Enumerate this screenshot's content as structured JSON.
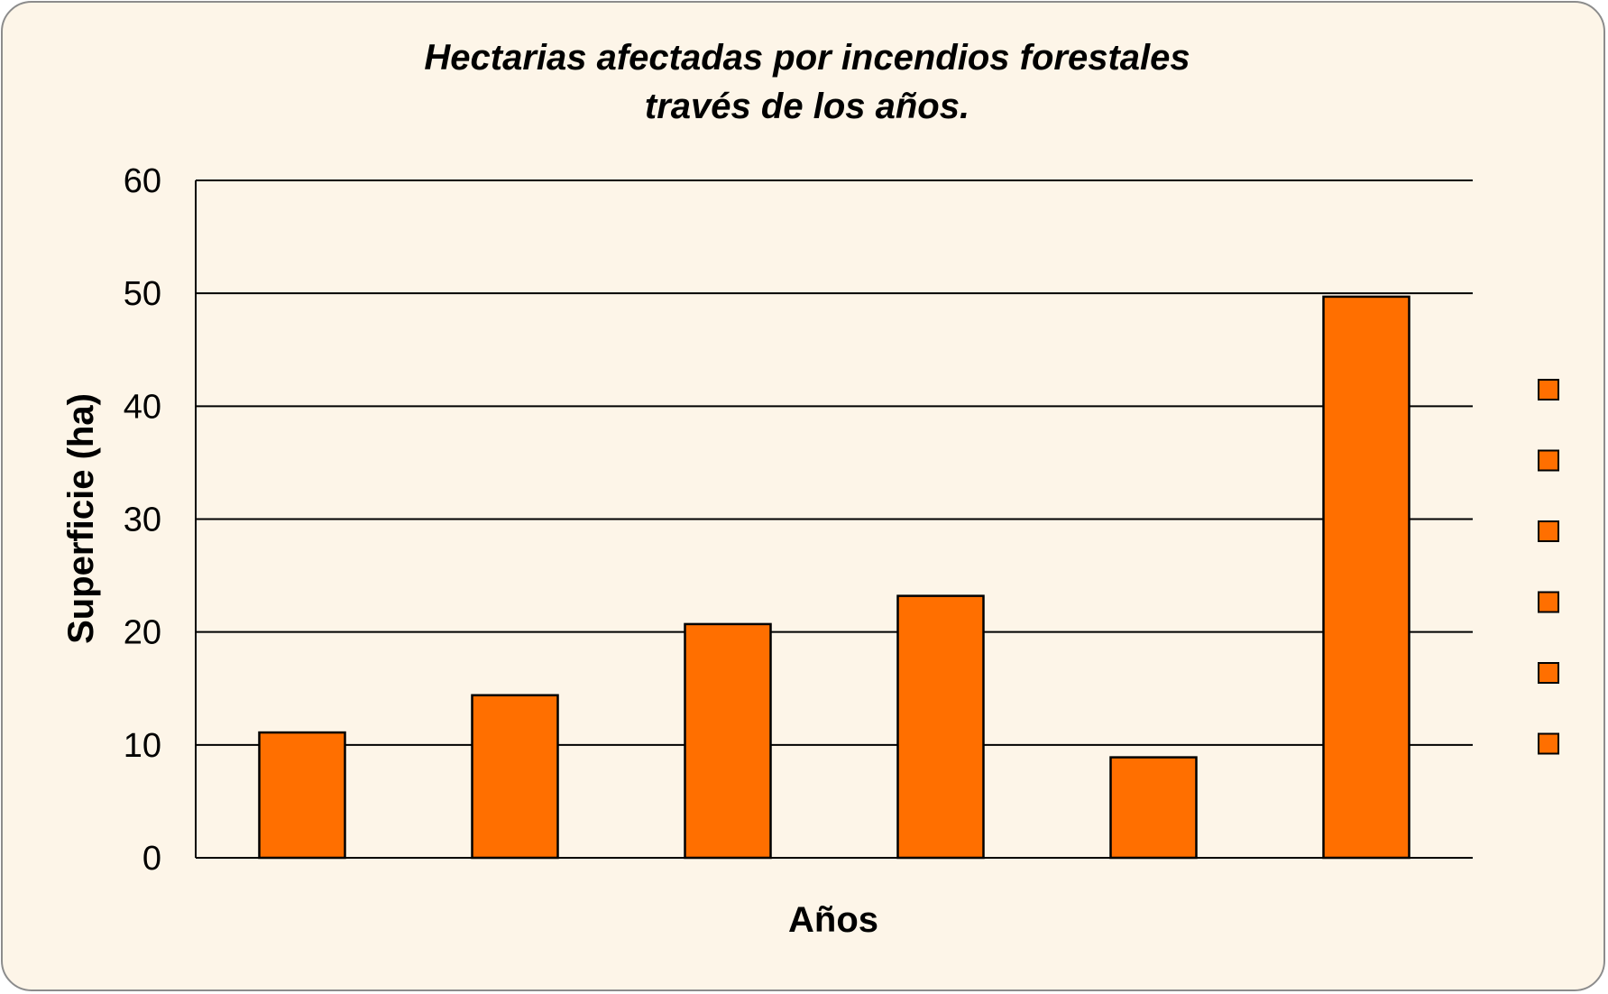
{
  "chart_data": {
    "type": "bar",
    "title_lines": [
      "Hectarias afectadas  por incendios forestales",
      "través de los años."
    ],
    "xlabel": "Años",
    "ylabel": "Superficie (ha)",
    "ylim": [
      0,
      60
    ],
    "yticks": [
      0,
      10,
      20,
      30,
      40,
      50,
      60
    ],
    "grid": true,
    "legend_position": "right",
    "categories": [
      "",
      "",
      "",
      "",
      "",
      ""
    ],
    "values": [
      11.1,
      14.4,
      20.7,
      23.2,
      8.9,
      49.7
    ],
    "legend_entries": [
      "",
      "",
      "",
      "",
      "",
      ""
    ],
    "colors": {
      "bar_fill": "#ff6f00",
      "bar_stroke": "#000000",
      "background": "#fdf5e8",
      "grid": "#000000"
    }
  }
}
